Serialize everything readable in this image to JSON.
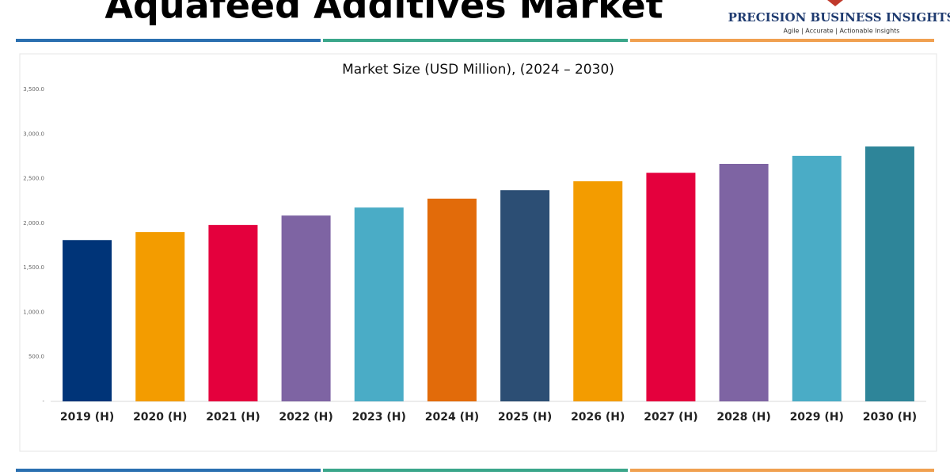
{
  "header": {
    "title": "Aquafeed Additives Market",
    "logo": "PRECISION BUSINESS INSIGHTS",
    "tagline": "Agile | Accurate | Actionable Insights"
  },
  "chart_data": {
    "type": "bar",
    "title": "Market Size (USD Million), (2024 – 2030)",
    "categories": [
      "2019 (H)",
      "2020 (H)",
      "2021 (H)",
      "2022 (H)",
      "2023 (H)",
      "2024 (H)",
      "2025 (H)",
      "2026 (H)",
      "2027 (H)",
      "2028 (H)",
      "2029 (H)",
      "2030 (H)"
    ],
    "values": [
      1810,
      1900,
      1980,
      2085,
      2175,
      2275,
      2370,
      2470,
      2565,
      2665,
      2755,
      2860
    ],
    "colors": [
      "#003478",
      "#f39c00",
      "#e4003d",
      "#7e64a3",
      "#4aacc6",
      "#e26b0a",
      "#2c4e74",
      "#f39c00",
      "#e4003d",
      "#7e64a3",
      "#4aacc6",
      "#2e8599"
    ],
    "ylim": [
      0,
      3500
    ],
    "yticks": [
      {
        "value": 0,
        "label": "-"
      },
      {
        "value": 500,
        "label": "500.0"
      },
      {
        "value": 1000,
        "label": "1,000.0"
      },
      {
        "value": 1500,
        "label": "1,500.0"
      },
      {
        "value": 2000,
        "label": "2,000.0"
      },
      {
        "value": 2500,
        "label": "2,500.0"
      },
      {
        "value": 3000,
        "label": "3,000.0"
      },
      {
        "value": 3500,
        "label": "3,500.0"
      }
    ],
    "grid": false
  }
}
